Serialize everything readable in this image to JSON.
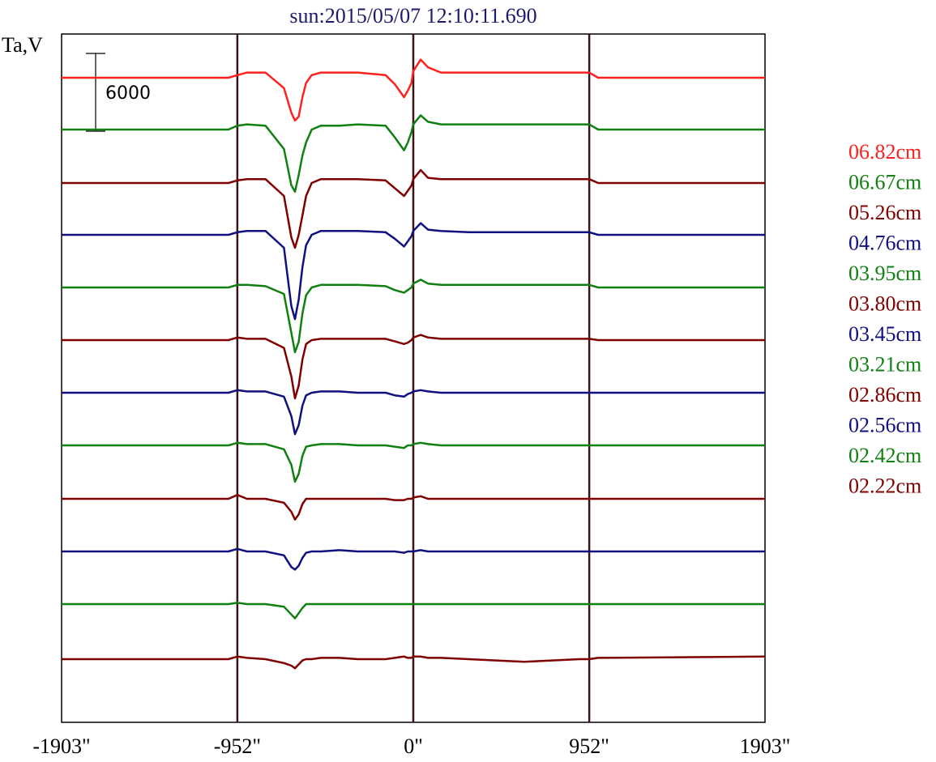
{
  "chart_data": {
    "type": "line",
    "title": "sun:2015/05/07 12:10:11.690",
    "ylabel": "Ta,V",
    "xlabel": "",
    "x_ticks": [
      {
        "value": -1903,
        "label": "-1903\""
      },
      {
        "value": -952,
        "label": "-952\""
      },
      {
        "value": 0,
        "label": "0\""
      },
      {
        "value": 952,
        "label": "952\""
      },
      {
        "value": 1903,
        "label": "1903\""
      }
    ],
    "xlim": [
      -1903,
      1903
    ],
    "vertical_lines": [
      -952,
      0,
      952
    ],
    "scale_bar": {
      "value": 6000,
      "label": "6000"
    },
    "legend_position": "right",
    "x": [
      -1903,
      -1000,
      -952,
      -900,
      -800,
      -700,
      -660,
      -640,
      -620,
      -600,
      -580,
      -550,
      -500,
      -400,
      -300,
      -150,
      -100,
      -50,
      -30,
      -10,
      0,
      40,
      80,
      150,
      300,
      600,
      900,
      952,
      1000,
      1903
    ],
    "series": [
      {
        "name": "06.82cm",
        "color": "#ff2020",
        "offset": 96,
        "values": [
          0,
          0,
          200,
          400,
          400,
          -800,
          -2700,
          -3300,
          -3000,
          -1500,
          -400,
          200,
          400,
          400,
          400,
          200,
          -500,
          -1500,
          -1000,
          -400,
          500,
          1400,
          800,
          400,
          400,
          400,
          400,
          400,
          0,
          0
        ]
      },
      {
        "name": "06.67cm",
        "color": "#108010",
        "offset": 160,
        "values": [
          0,
          0,
          300,
          400,
          300,
          -1500,
          -4300,
          -4800,
          -3500,
          -2000,
          -1000,
          0,
          300,
          300,
          400,
          300,
          -600,
          -1600,
          -1000,
          -200,
          400,
          1100,
          600,
          400,
          400,
          400,
          400,
          400,
          0,
          0
        ]
      },
      {
        "name": "05.26cm",
        "color": "#800000",
        "offset": 226,
        "values": [
          0,
          0,
          200,
          300,
          300,
          -1000,
          -4200,
          -5000,
          -4000,
          -2500,
          -1000,
          0,
          300,
          300,
          300,
          200,
          -400,
          -1000,
          -600,
          -200,
          300,
          1000,
          400,
          300,
          300,
          300,
          300,
          300,
          0,
          0
        ]
      },
      {
        "name": "04.76cm",
        "color": "#101080",
        "offset": 290,
        "values": [
          0,
          0,
          200,
          300,
          300,
          -1000,
          -5500,
          -6500,
          -5000,
          -2500,
          -800,
          0,
          300,
          300,
          300,
          200,
          -300,
          -900,
          -500,
          -100,
          300,
          900,
          400,
          300,
          200,
          200,
          200,
          200,
          0,
          0
        ]
      },
      {
        "name": "03.95cm",
        "color": "#108010",
        "offset": 355,
        "values": [
          0,
          0,
          200,
          200,
          100,
          -500,
          -3500,
          -5000,
          -4200,
          -2000,
          -600,
          0,
          200,
          200,
          200,
          100,
          -200,
          -400,
          -200,
          0,
          300,
          600,
          300,
          200,
          200,
          200,
          200,
          200,
          0,
          0
        ]
      },
      {
        "name": "03.80cm",
        "color": "#800000",
        "offset": 420,
        "values": [
          0,
          0,
          200,
          100,
          100,
          -600,
          -2800,
          -4500,
          -3500,
          -1500,
          -300,
          0,
          100,
          100,
          100,
          100,
          -100,
          -300,
          -200,
          0,
          200,
          400,
          200,
          100,
          100,
          100,
          100,
          100,
          0,
          0
        ]
      },
      {
        "name": "03.45cm",
        "color": "#101080",
        "offset": 485,
        "values": [
          0,
          0,
          200,
          100,
          100,
          -300,
          -1800,
          -3200,
          -2500,
          -1000,
          -200,
          0,
          100,
          100,
          0,
          0,
          -200,
          -300,
          -100,
          0,
          100,
          200,
          100,
          0,
          0,
          0,
          0,
          0,
          0,
          0
        ]
      },
      {
        "name": "03.21cm",
        "color": "#108010",
        "offset": 550,
        "values": [
          0,
          0,
          200,
          100,
          100,
          -300,
          -1500,
          -2800,
          -2200,
          -800,
          -100,
          0,
          100,
          100,
          0,
          0,
          -100,
          -200,
          0,
          0,
          100,
          200,
          100,
          0,
          0,
          0,
          0,
          0,
          0,
          0
        ]
      },
      {
        "name": "02.86cm",
        "color": "#800000",
        "offset": 616,
        "values": [
          0,
          0,
          300,
          0,
          0,
          -300,
          -1000,
          -1600,
          -1200,
          -400,
          0,
          0,
          0,
          0,
          0,
          0,
          -100,
          -100,
          0,
          0,
          100,
          200,
          0,
          0,
          0,
          0,
          0,
          0,
          0,
          0
        ]
      },
      {
        "name": "02.56cm",
        "color": "#101080",
        "offset": 681,
        "values": [
          0,
          0,
          200,
          0,
          0,
          -300,
          -1200,
          -1400,
          -1100,
          -500,
          -100,
          0,
          0,
          100,
          0,
          0,
          0,
          -100,
          0,
          0,
          0,
          100,
          0,
          0,
          0,
          0,
          0,
          0,
          0,
          0
        ]
      },
      {
        "name": "02.42cm",
        "color": "#108010",
        "offset": 746,
        "values": [
          0,
          0,
          100,
          0,
          0,
          -200,
          -800,
          -1100,
          -700,
          -300,
          0,
          0,
          0,
          0,
          0,
          0,
          0,
          0,
          0,
          0,
          0,
          0,
          0,
          0,
          0,
          0,
          0,
          0,
          0,
          0
        ]
      },
      {
        "name": "02.22cm",
        "color": "#800000",
        "offset": 814,
        "values": [
          0,
          0,
          200,
          100,
          0,
          -300,
          -500,
          -700,
          -400,
          -100,
          0,
          0,
          100,
          100,
          0,
          0,
          100,
          200,
          100,
          100,
          200,
          200,
          100,
          100,
          0,
          -200,
          0,
          0,
          100,
          200
        ]
      }
    ]
  }
}
